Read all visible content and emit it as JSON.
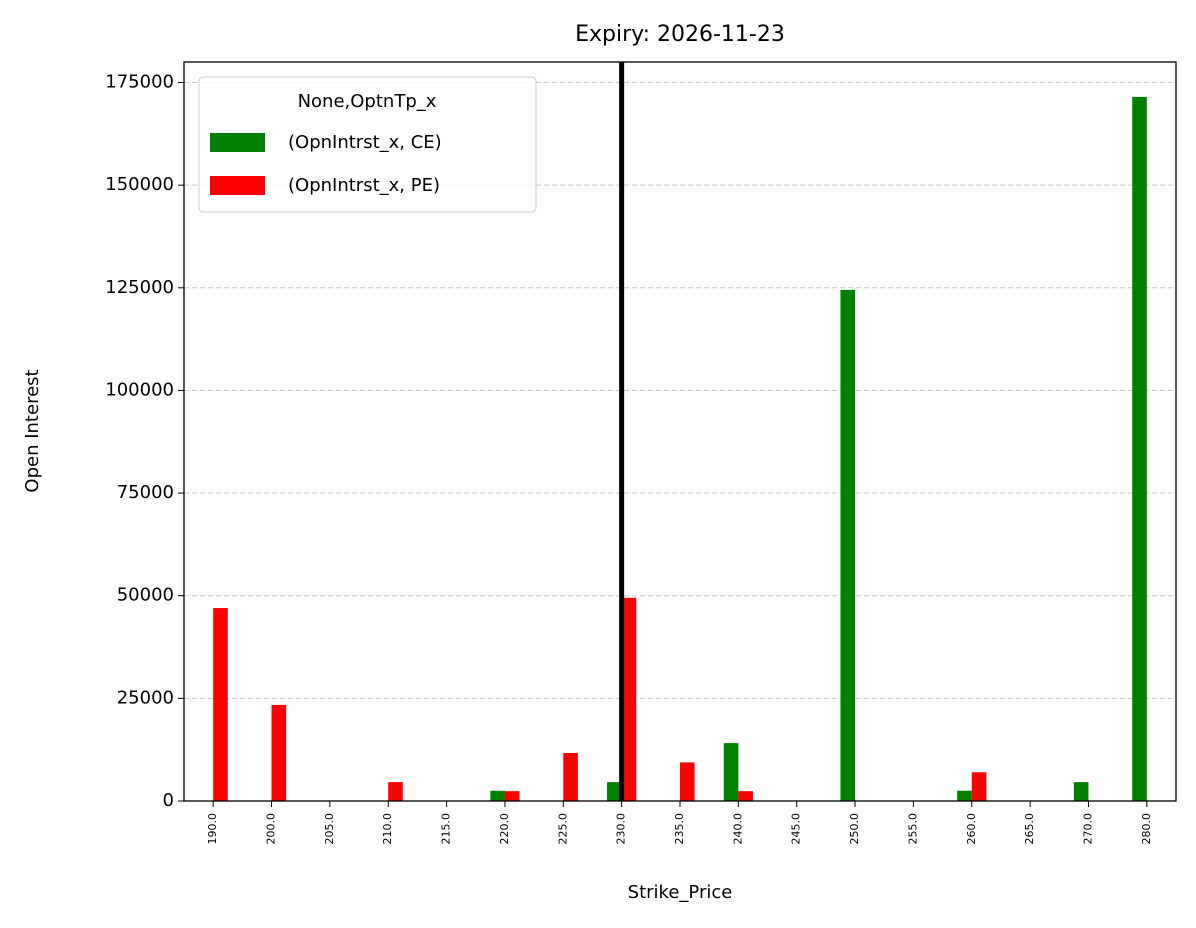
{
  "chart_data": {
    "type": "bar",
    "title": "Expiry: 2026-11-23",
    "xlabel": "Strike_Price",
    "ylabel": "Open Interest",
    "categories": [
      "190.0",
      "200.0",
      "205.0",
      "210.0",
      "215.0",
      "220.0",
      "225.0",
      "230.0",
      "235.0",
      "240.0",
      "245.0",
      "250.0",
      "255.0",
      "260.0",
      "265.0",
      "270.0",
      "280.0"
    ],
    "series": [
      {
        "name": "(OpnIntrst_x, CE)",
        "color": "#008000",
        "values": [
          0,
          0,
          0,
          0,
          0,
          2500,
          0,
          4600,
          0,
          14100,
          0,
          124500,
          0,
          2500,
          0,
          4600,
          171500
        ]
      },
      {
        "name": "(OpnIntrst_x, PE)",
        "color": "#ff0000",
        "values": [
          47000,
          23400,
          0,
          4600,
          0,
          2400,
          11700,
          49500,
          9400,
          2400,
          0,
          0,
          0,
          7000,
          0,
          0,
          0
        ]
      }
    ],
    "legend_title": "None,OptnTp_x",
    "legend_position": "upper left",
    "vline_category": "230.0",
    "vline_color": "#000000",
    "ylim": [
      0,
      180000
    ],
    "yticks": [
      0,
      25000,
      50000,
      75000,
      100000,
      125000,
      150000,
      175000
    ],
    "grid": true
  }
}
